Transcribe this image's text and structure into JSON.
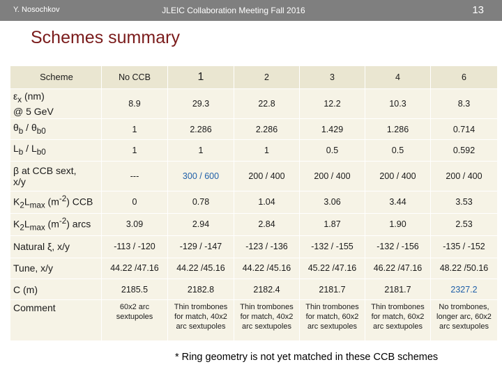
{
  "header": {
    "author": "Y. Nosochkov",
    "meeting": "JLEIC Collaboration Meeting Fall 2016",
    "page_number": "13"
  },
  "title": "Schemes summary",
  "table": {
    "columns": [
      "Scheme",
      "No CCB",
      "1",
      "2",
      "3",
      "4",
      "6"
    ],
    "rows": [
      {
        "label_html": "ε<sub>x</sub> (nm)<br>@ 5 GeV",
        "cells": [
          "8.9",
          "29.3",
          "22.8",
          "12.2",
          "10.3",
          "8.3"
        ]
      },
      {
        "label_html": "θ<sub>b</sub> / θ<sub>b0</sub>",
        "cells": [
          "1",
          "2.286",
          "2.286",
          "1.429",
          "1.286",
          "0.714"
        ]
      },
      {
        "label_html": "L<sub>b</sub> / L<sub>b0</sub>",
        "cells": [
          "1",
          "1",
          "1",
          "0.5",
          "0.5",
          "0.592"
        ]
      },
      {
        "label_html": "β at CCB sext,<br>x/y",
        "cells": [
          "---",
          "300 / 600",
          "200 / 400",
          "200 / 400",
          "200 / 400",
          "200 / 400"
        ]
      },
      {
        "label_html": "K<sub>2</sub>L<sub>max</sub> (m<sup>-2</sup>) CCB",
        "cells": [
          "0",
          "0.78",
          "1.04",
          "3.06",
          "3.44",
          "3.53"
        ]
      },
      {
        "label_html": "K<sub>2</sub>L<sub>max</sub> (m<sup>-2</sup>) arcs",
        "cells": [
          "3.09",
          "2.94",
          "2.84",
          "1.87",
          "1.90",
          "2.53"
        ]
      },
      {
        "label_html": "Natural ξ, x/y",
        "cells": [
          "-113 / -120",
          "-129 / -147",
          "-123 / -136",
          "-132 / -155",
          "-132 / -156",
          "-135 / -152"
        ]
      },
      {
        "label_html": "Tune, x/y",
        "cells": [
          "44.22 /47.16",
          "44.22 /45.16",
          "44.22 /45.16",
          "45.22 /47.16",
          "46.22 /47.16",
          "48.22 /50.16"
        ]
      },
      {
        "label_html": "C (m)",
        "cells": [
          "2185.5",
          "2182.8",
          "2182.4",
          "2181.7",
          "2181.7",
          "2327.2"
        ]
      },
      {
        "label_html": "Comment",
        "cells": [
          "60x2 arc sextupoles",
          "Thin trombones for match, 40x2 arc sextupoles",
          "Thin trombones for match, 40x2 arc sextupoles",
          "Thin trombones for match, 60x2 arc sextupoles",
          "Thin trombones for match, 60x2 arc sextupoles",
          "No trombones, longer arc, 60x2 arc sextupoles"
        ]
      }
    ],
    "highlight_color": "#1f5fa8"
  },
  "footnote": "* Ring geometry is not yet matched in these CCB schemes"
}
